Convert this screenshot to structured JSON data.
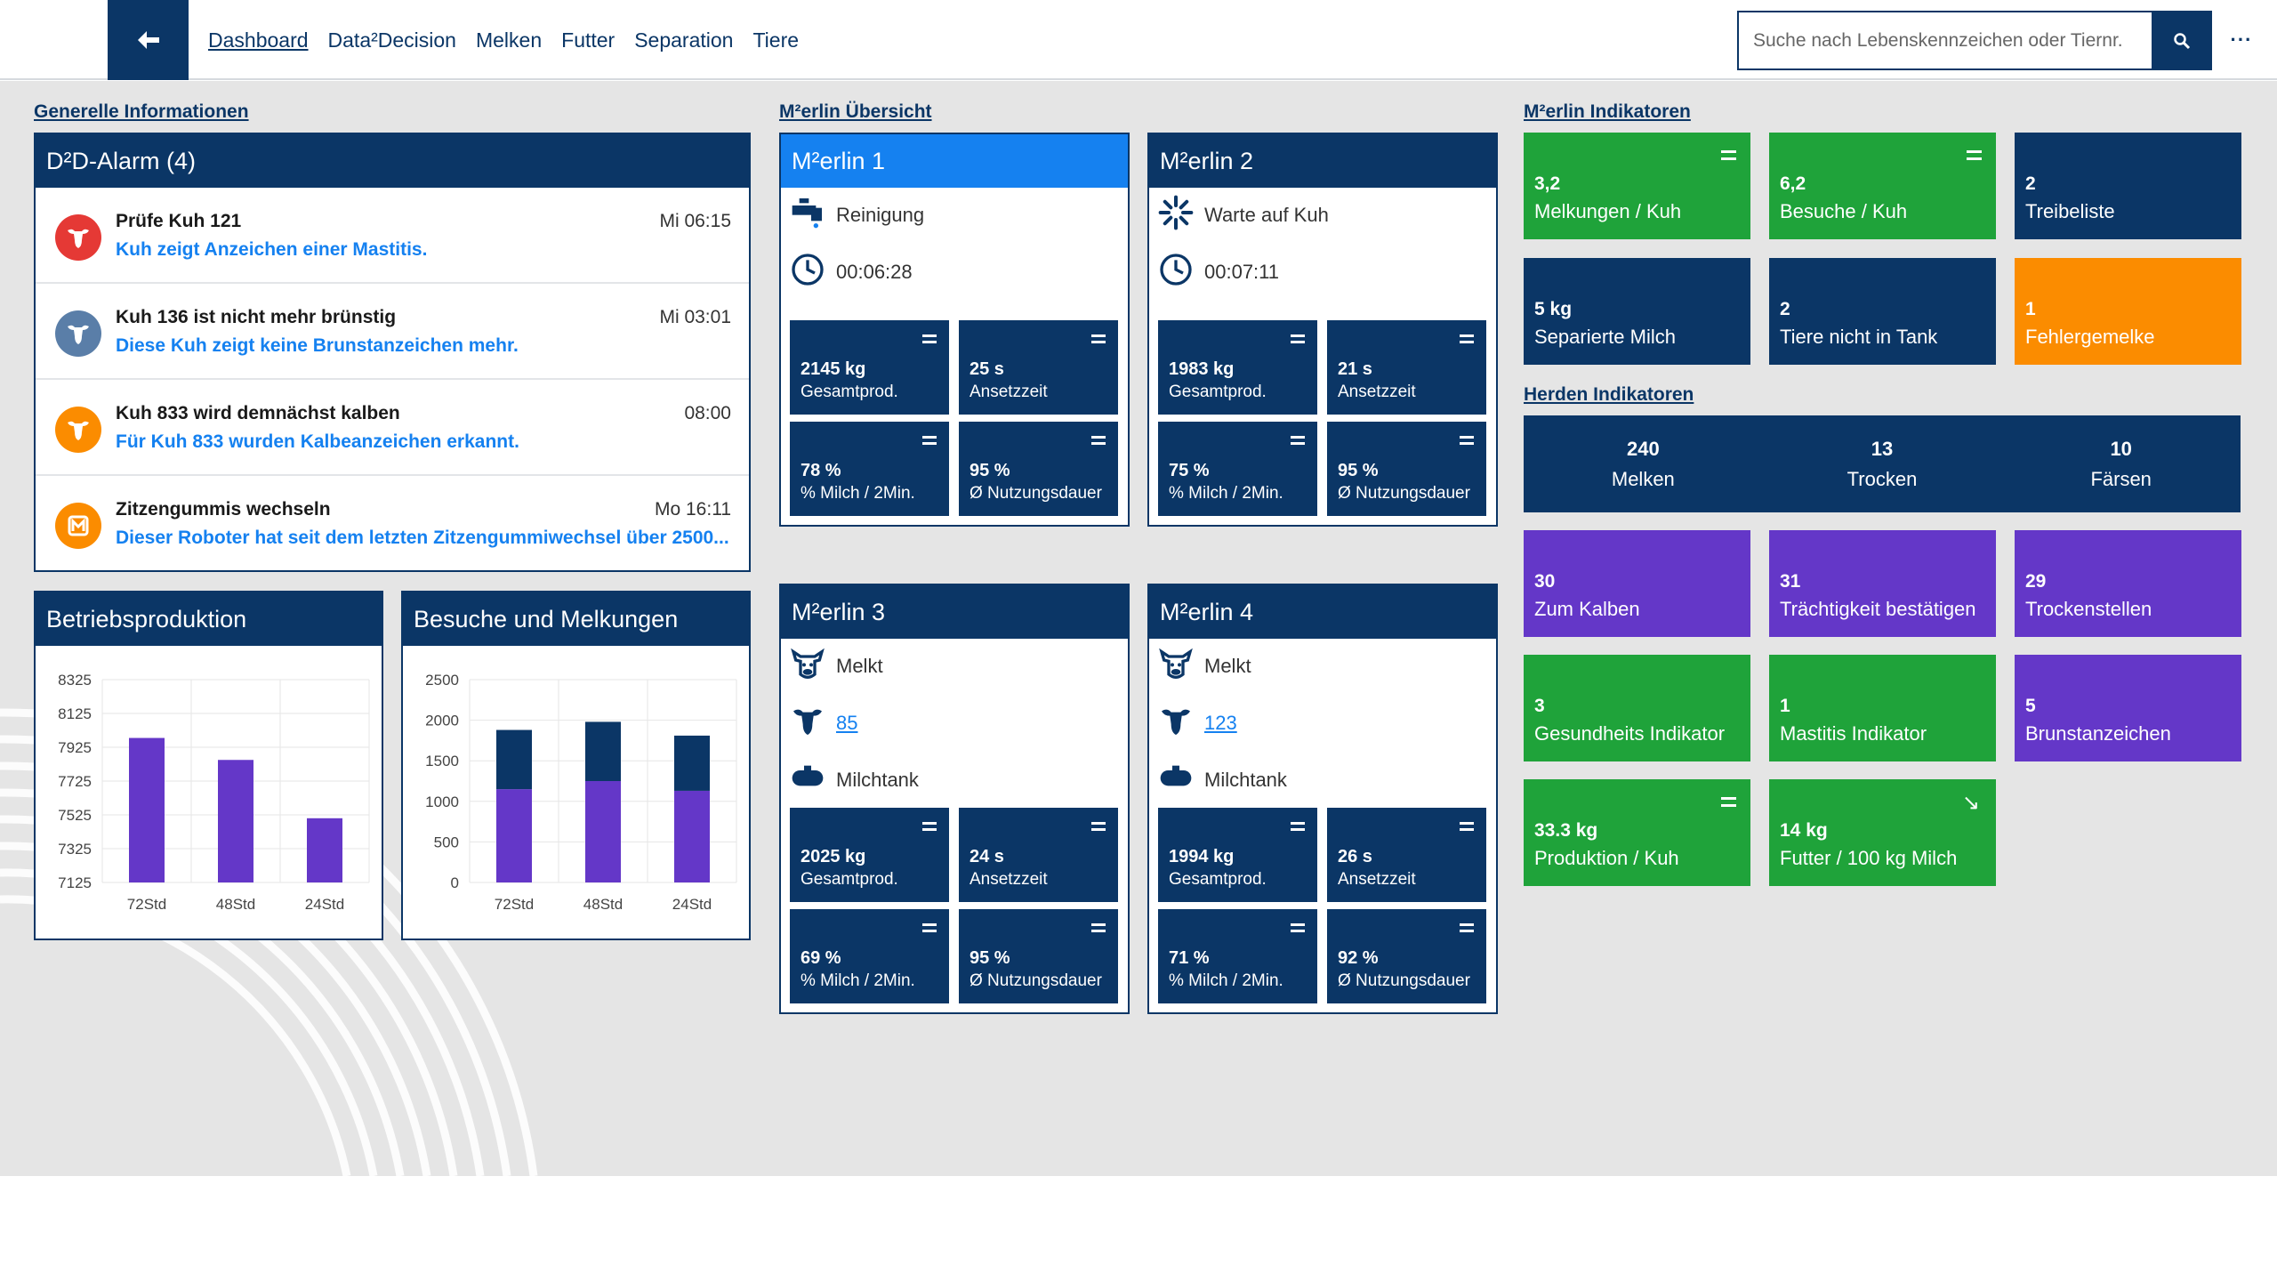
{
  "nav": {
    "items": [
      "Dashboard",
      "Data²Decision",
      "Melken",
      "Futter",
      "Separation",
      "Tiere"
    ],
    "active": "Dashboard"
  },
  "search": {
    "placeholder": "Suche nach Lebenskennzeichen oder Tiernr."
  },
  "sections": {
    "general": "Generelle Informationen",
    "merlin_overview": "M²erlin Übersicht",
    "merlin_indicators": "M²erlin Indikatoren",
    "herd_indicators": "Herden Indikatoren"
  },
  "alarm_panel": {
    "title": "D²D-Alarm (4)",
    "items": [
      {
        "icon": "cow-alert-icon",
        "color": "#e53935",
        "title": "Prüfe Kuh 121",
        "time": "Mi 06:15",
        "desc": "Kuh zeigt Anzeichen einer Mastitis."
      },
      {
        "icon": "cow-heat-icon",
        "color": "#5a7ea8",
        "title": "Kuh 136 ist nicht mehr brünstig",
        "time": "Mi 03:01",
        "desc": "Diese Kuh zeigt keine Brunstanzeichen mehr."
      },
      {
        "icon": "cow-calving-icon",
        "color": "#fb8c00",
        "title": "Kuh 833 wird demnächst kalben",
        "time": "08:00",
        "desc": "Für Kuh 833 wurden Kalbeanzeichen erkannt."
      },
      {
        "icon": "robot-m-icon",
        "color": "#fb8c00",
        "title": "Zitzengummis wechseln",
        "time": "Mo 16:11",
        "desc": "Dieser Roboter hat seit dem letzten Zitzengummiwechsel über 2500..."
      }
    ]
  },
  "chart_data": [
    {
      "type": "bar",
      "title": "Betriebsproduktion",
      "categories": [
        "72Std",
        "48Std",
        "24Std"
      ],
      "values": [
        7980,
        7850,
        7505
      ],
      "ylim": [
        7125,
        8325
      ],
      "yticks": [
        7125,
        7325,
        7525,
        7725,
        7925,
        8125,
        8325
      ],
      "grid": true,
      "colors": [
        "#6437c8"
      ]
    },
    {
      "type": "bar",
      "title": "Besuche und Melkungen",
      "categories": [
        "72Std",
        "48Std",
        "24Std"
      ],
      "stacked": true,
      "series": [
        {
          "values": [
            1150,
            1250,
            1130
          ],
          "color": "#6437c8"
        },
        {
          "values": [
            730,
            730,
            680
          ],
          "color": "#0b3666"
        }
      ],
      "ylim": [
        0,
        2500
      ],
      "yticks": [
        0,
        500,
        1000,
        1500,
        2000,
        2500
      ],
      "grid": true
    }
  ],
  "robots": [
    {
      "name": "M²erlin 1",
      "active": true,
      "rows": [
        {
          "icon": "cleaning-tap-icon",
          "text": "Reinigung"
        },
        {
          "icon": "clock-icon",
          "text": "00:06:28"
        }
      ],
      "kpis": [
        {
          "value": "2145 kg",
          "label": "Gesamtprod."
        },
        {
          "value": "25 s",
          "label": "Ansetzzeit"
        },
        {
          "value": "78 %",
          "label": "% Milch / 2Min."
        },
        {
          "value": "95 %",
          "label": "Ø Nutzungsdauer"
        }
      ]
    },
    {
      "name": "M²erlin 2",
      "active": false,
      "rows": [
        {
          "icon": "spinner-icon",
          "text": "Warte auf Kuh"
        },
        {
          "icon": "clock-icon",
          "text": "00:07:11"
        }
      ],
      "kpis": [
        {
          "value": "1983 kg",
          "label": "Gesamtprod."
        },
        {
          "value": "21 s",
          "label": "Ansetzzeit"
        },
        {
          "value": "75 %",
          "label": "% Milch / 2Min."
        },
        {
          "value": "95 %",
          "label": "Ø Nutzungsdauer"
        }
      ]
    },
    {
      "name": "M²erlin 3",
      "active": false,
      "rows": [
        {
          "icon": "cow-face-icon",
          "text": "Melkt"
        },
        {
          "icon": "cow-icon",
          "text": "85",
          "link": true
        },
        {
          "icon": "milk-tank-icon",
          "text": "Milchtank"
        }
      ],
      "kpis": [
        {
          "value": "2025 kg",
          "label": "Gesamtprod."
        },
        {
          "value": "24 s",
          "label": "Ansetzzeit"
        },
        {
          "value": "69 %",
          "label": "% Milch / 2Min."
        },
        {
          "value": "95 %",
          "label": "Ø Nutzungsdauer"
        }
      ]
    },
    {
      "name": "M²erlin 4",
      "active": false,
      "rows": [
        {
          "icon": "cow-face-icon",
          "text": "Melkt"
        },
        {
          "icon": "cow-icon",
          "text": "123",
          "link": true
        },
        {
          "icon": "milk-tank-icon",
          "text": "Milchtank"
        }
      ],
      "kpis": [
        {
          "value": "1994 kg",
          "label": "Gesamtprod."
        },
        {
          "value": "26 s",
          "label": "Ansetzzeit"
        },
        {
          "value": "71 %",
          "label": "% Milch / 2Min."
        },
        {
          "value": "92 %",
          "label": "Ø Nutzungsdauer"
        }
      ]
    }
  ],
  "merlin_tiles": [
    {
      "value": "3,2",
      "label": "Melkungen / Kuh",
      "color": "green",
      "menu": true
    },
    {
      "value": "6,2",
      "label": "Besuche / Kuh",
      "color": "green",
      "menu": true
    },
    {
      "value": "2",
      "label": "Treibeliste",
      "color": "navy"
    },
    {
      "value": "5 kg",
      "label": "Separierte Milch",
      "color": "navy"
    },
    {
      "value": "2",
      "label": "Tiere nicht in Tank",
      "color": "navy"
    },
    {
      "value": "1",
      "label": "Fehlergemelke",
      "color": "orange"
    }
  ],
  "herd_summary": [
    {
      "value": "240",
      "label": "Melken"
    },
    {
      "value": "13",
      "label": "Trocken"
    },
    {
      "value": "10",
      "label": "Färsen"
    }
  ],
  "herd_tiles": [
    {
      "value": "30",
      "label": "Zum Kalben",
      "color": "purple"
    },
    {
      "value": "31",
      "label": "Trächtigkeit bestätigen",
      "color": "purple"
    },
    {
      "value": "29",
      "label": "Trockenstellen",
      "color": "purple"
    },
    {
      "value": "3",
      "label": "Gesundheits Indikator",
      "color": "green"
    },
    {
      "value": "1",
      "label": "Mastitis Indikator",
      "color": "green"
    },
    {
      "value": "5",
      "label": "Brunstanzeichen",
      "color": "purple"
    },
    {
      "value": "33.3 kg",
      "label": "Produktion / Kuh",
      "color": "green",
      "menu": true
    },
    {
      "value": "14 kg",
      "label": "Futter / 100 kg Milch",
      "color": "green",
      "arrow": "↘"
    }
  ]
}
